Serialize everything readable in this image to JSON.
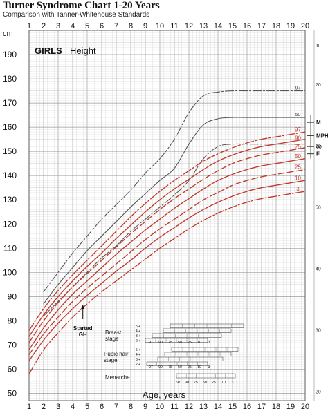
{
  "title": "Turner Syndrome Chart 1-20 Years",
  "subtitle": "Comparison with Tanner-Whitehouse Standards",
  "chart_data": {
    "type": "line",
    "panel_label_bold": "GIRLS",
    "panel_label": "Height",
    "xlabel": "Age, years",
    "ylabel_left": "cm",
    "ylabel_right": "in",
    "xlim": [
      1,
      20
    ],
    "ylim": [
      47,
      200
    ],
    "x_ticks": [
      1,
      2,
      3,
      4,
      5,
      6,
      7,
      8,
      9,
      10,
      11,
      12,
      13,
      14,
      15,
      16,
      17,
      18,
      19,
      20
    ],
    "y_ticks_cm": [
      50,
      60,
      70,
      80,
      90,
      100,
      110,
      120,
      130,
      140,
      150,
      160,
      170,
      180,
      190
    ],
    "y_ticks_in": [
      20,
      30,
      40,
      50,
      60,
      70
    ],
    "grid": true,
    "normal_series": [
      {
        "name": "97",
        "style": "dash-dot",
        "color": "#555555",
        "x": [
          2,
          3,
          4,
          5,
          6,
          7,
          8,
          9,
          10,
          11,
          12,
          13,
          14,
          15,
          16,
          17,
          18,
          19,
          20
        ],
        "y": [
          92,
          100,
          108,
          115,
          122,
          128,
          134,
          141,
          147,
          155,
          166,
          173,
          174.5,
          175,
          175,
          175,
          175,
          175,
          175
        ]
      },
      {
        "name": "50",
        "style": "solid",
        "color": "#555555",
        "x": [
          2,
          3,
          4,
          5,
          6,
          7,
          8,
          9,
          10,
          11,
          12,
          13,
          14,
          15,
          16,
          17,
          18,
          19,
          20
        ],
        "y": [
          87,
          95,
          102,
          109,
          115,
          121,
          127,
          132.5,
          138,
          143,
          153,
          161,
          163.5,
          164,
          164,
          164,
          164,
          164,
          164
        ]
      },
      {
        "name": "3",
        "style": "dash-dot",
        "color": "#555555",
        "x": [
          2,
          3,
          4,
          5,
          6,
          7,
          8,
          9,
          10,
          11,
          12,
          13,
          14,
          15,
          16,
          17,
          18,
          19,
          20
        ],
        "y": [
          82,
          88,
          94,
          100,
          106,
          111,
          117,
          122,
          127,
          132,
          138,
          147,
          152,
          153,
          153,
          153,
          153,
          153,
          153
        ]
      }
    ],
    "turner_series": [
      {
        "name": "97",
        "style": "dash-dot",
        "color": "#c0392b",
        "x": [
          1,
          2,
          3,
          4,
          5,
          6,
          7,
          8,
          9,
          10,
          11,
          12,
          13,
          14,
          15,
          16,
          17,
          18,
          19,
          20
        ],
        "y": [
          76,
          85,
          92.5,
          99,
          105,
          111,
          117,
          123,
          128.5,
          133.5,
          138,
          142,
          146,
          149,
          151.5,
          153.5,
          155,
          156,
          157,
          158
        ]
      },
      {
        "name": "90",
        "style": "solid",
        "color": "#c0392b",
        "x": [
          1,
          2,
          3,
          4,
          5,
          6,
          7,
          8,
          9,
          10,
          11,
          12,
          13,
          14,
          15,
          16,
          17,
          18,
          19,
          20
        ],
        "y": [
          73.5,
          82.5,
          90,
          96.5,
          102.5,
          108,
          114,
          119.5,
          125,
          130,
          134.5,
          138.5,
          142.5,
          146,
          148.5,
          150.5,
          152,
          153,
          154,
          155
        ]
      },
      {
        "name": "75",
        "style": "dash",
        "color": "#c0392b",
        "x": [
          1,
          2,
          3,
          4,
          5,
          6,
          7,
          8,
          9,
          10,
          11,
          12,
          13,
          14,
          15,
          16,
          17,
          18,
          19,
          20
        ],
        "y": [
          71,
          80,
          87.5,
          94,
          99.5,
          105,
          110.5,
          116,
          121,
          126,
          130.5,
          134.5,
          138.5,
          142,
          145,
          147,
          148.5,
          149.5,
          150.5,
          151.5
        ]
      },
      {
        "name": "50",
        "style": "solid",
        "color": "#c0392b",
        "x": [
          1,
          2,
          3,
          4,
          5,
          6,
          7,
          8,
          9,
          10,
          11,
          12,
          13,
          14,
          15,
          16,
          17,
          18,
          19,
          20
        ],
        "y": [
          68,
          77,
          84.5,
          91,
          96.5,
          102,
          107.5,
          112.5,
          117.5,
          122,
          126.5,
          130.5,
          134.5,
          138,
          140.5,
          142.5,
          144,
          145,
          146,
          147
        ]
      },
      {
        "name": "25",
        "style": "dash",
        "color": "#c0392b",
        "x": [
          1,
          2,
          3,
          4,
          5,
          6,
          7,
          8,
          9,
          10,
          11,
          12,
          13,
          14,
          15,
          16,
          17,
          18,
          19,
          20
        ],
        "y": [
          66,
          74.5,
          81.5,
          88,
          93.5,
          98.5,
          103.5,
          108.5,
          113.5,
          118,
          122,
          126,
          130,
          133,
          136,
          138,
          139.5,
          140.5,
          141.5,
          142.5
        ]
      },
      {
        "name": "10",
        "style": "solid",
        "color": "#c0392b",
        "x": [
          1,
          2,
          3,
          4,
          5,
          6,
          7,
          8,
          9,
          10,
          11,
          12,
          13,
          14,
          15,
          16,
          17,
          18,
          19,
          20
        ],
        "y": [
          63.5,
          72,
          79,
          85,
          90.5,
          95.5,
          100.5,
          105,
          110,
          114.5,
          118.5,
          122.5,
          126,
          129,
          131.5,
          133.5,
          135,
          136,
          137,
          138
        ]
      },
      {
        "name": "3",
        "style": "dash-dot",
        "color": "#c0392b",
        "x": [
          1,
          2,
          3,
          4,
          5,
          6,
          7,
          8,
          9,
          10,
          11,
          12,
          13,
          14,
          15,
          16,
          17,
          18,
          19,
          20
        ],
        "y": [
          58,
          68,
          75,
          81.5,
          87,
          92,
          96.5,
          101,
          105.5,
          110,
          114,
          118,
          121.5,
          124.5,
          127,
          129,
          130.5,
          131.5,
          132.5,
          133.5
        ]
      }
    ],
    "right_markers": [
      {
        "label": "M",
        "y": 162
      },
      {
        "label": "MPH",
        "y": 156.5
      },
      {
        "label": "60",
        "y": 152
      },
      {
        "label": "F",
        "y": 149
      }
    ],
    "annotation": {
      "line1": "Started",
      "line2": "GH",
      "x": 4.7
    },
    "tanner": {
      "breast_label": [
        "Breast",
        "stage"
      ],
      "pubic_label": [
        "Pubic hair",
        "stage"
      ],
      "menarche_label": "Menarche",
      "stage_labels": [
        "5 +",
        "4 +",
        "3 +",
        "2 +"
      ],
      "pct_labels": [
        "97",
        "90",
        "75",
        "50",
        "25",
        "10",
        "3"
      ]
    }
  }
}
